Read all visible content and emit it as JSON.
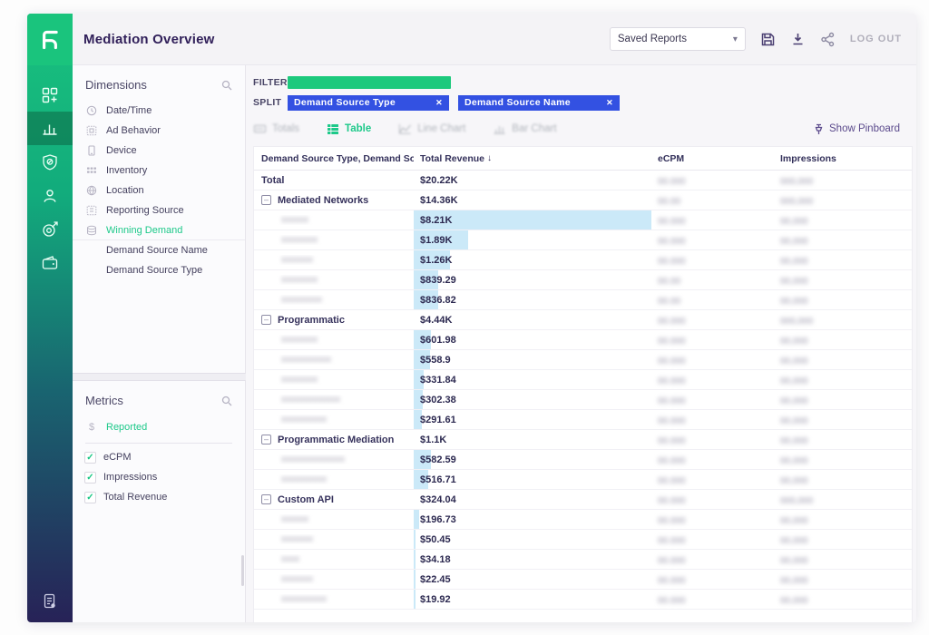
{
  "colors": {
    "accent_green": "#1ec98a",
    "filter_chip_green": "#1dc97d",
    "split_chip_blue": "#3351e2",
    "data_bar_blue": "#cbe9f8",
    "title_purple": "#31205a",
    "sidebar_gradient_top": "#19c27e",
    "sidebar_gradient_bottom": "#272257"
  },
  "topbar": {
    "title": "Mediation Overview",
    "saved_reports_label": "Saved Reports",
    "logout_label": "LOG OUT"
  },
  "sidebar": {
    "items": [
      {
        "icon": "apps-icon",
        "active": false
      },
      {
        "icon": "analytics-bars-icon",
        "active": true
      },
      {
        "icon": "shield-icon",
        "active": false
      },
      {
        "icon": "user-icon",
        "active": false
      },
      {
        "icon": "target-icon",
        "active": false
      },
      {
        "icon": "wallet-icon",
        "active": false
      }
    ],
    "bottom_icon": "report-doc-icon"
  },
  "dimensions": {
    "title": "Dimensions",
    "items": [
      {
        "label": "Date/Time",
        "icon": "clock-icon"
      },
      {
        "label": "Ad Behavior",
        "icon": "ad-behavior-icon"
      },
      {
        "label": "Device",
        "icon": "device-icon"
      },
      {
        "label": "Inventory",
        "icon": "inventory-icon"
      },
      {
        "label": "Location",
        "icon": "globe-icon"
      },
      {
        "label": "Reporting Source",
        "icon": "reporting-source-icon"
      },
      {
        "label": "Winning Demand",
        "icon": "winning-demand-icon",
        "active": true
      },
      {
        "label": "Demand Source Name",
        "sub": true
      },
      {
        "label": "Demand Source Type",
        "sub": true
      }
    ]
  },
  "metrics": {
    "title": "Metrics",
    "reported_label": "Reported",
    "items": [
      {
        "label": "eCPM",
        "checked": true
      },
      {
        "label": "Impressions",
        "checked": true
      },
      {
        "label": "Total Revenue",
        "checked": true
      }
    ]
  },
  "filter_bar": {
    "filter_label": "FILTER",
    "split_label": "SPLIT",
    "filter_value_redacted": true,
    "split_chips": [
      {
        "label": "Demand Source Type",
        "close": "✕"
      },
      {
        "label": "Demand Source Name",
        "close": "✕"
      }
    ]
  },
  "view_tabs": {
    "tabs": [
      {
        "label": "Totals",
        "icon": "totals-icon",
        "state": "disabled"
      },
      {
        "label": "Table",
        "icon": "table-icon",
        "state": "active"
      },
      {
        "label": "Line Chart",
        "icon": "line-chart-icon",
        "state": "disabled"
      },
      {
        "label": "Bar Chart",
        "icon": "bar-chart-icon",
        "state": "disabled"
      }
    ],
    "pinboard_label": "Show Pinboard"
  },
  "table": {
    "columns": [
      {
        "label": "Demand Source Type, Demand Source ..."
      },
      {
        "label": "Total Revenue",
        "sort": "desc"
      },
      {
        "label": "eCPM"
      },
      {
        "label": "Impressions"
      }
    ],
    "max_leaf_revenue": 8210,
    "rows": [
      {
        "type": "total",
        "name": "Total",
        "revenue": "$20.22K",
        "revenue_value": 20220,
        "ecpm_masked": "00.000",
        "impressions_masked": "000,000"
      },
      {
        "type": "group",
        "name": "Mediated Networks",
        "revenue": "$14.36K",
        "revenue_value": 14360,
        "ecpm_masked": "00.00",
        "impressions_masked": "000,000"
      },
      {
        "type": "leaf",
        "name_masked": "xxxxxx",
        "revenue": "$8.21K",
        "revenue_value": 8210,
        "ecpm_masked": "00.000",
        "impressions_masked": "00,000"
      },
      {
        "type": "leaf",
        "name_masked": "xxxxxxxx",
        "revenue": "$1.89K",
        "revenue_value": 1890,
        "ecpm_masked": "00.000",
        "impressions_masked": "00,000"
      },
      {
        "type": "leaf",
        "name_masked": "xxxxxxx",
        "revenue": "$1.26K",
        "revenue_value": 1260,
        "ecpm_masked": "00.000",
        "impressions_masked": "00,000"
      },
      {
        "type": "leaf",
        "name_masked": "xxxxxxxx",
        "revenue": "$839.29",
        "revenue_value": 839,
        "ecpm_masked": "00.00",
        "impressions_masked": "00,000"
      },
      {
        "type": "leaf",
        "name_masked": "xxxxxxxxx",
        "revenue": "$836.82",
        "revenue_value": 837,
        "ecpm_masked": "00.00",
        "impressions_masked": "00,000"
      },
      {
        "type": "group",
        "name": "Programmatic",
        "revenue": "$4.44K",
        "revenue_value": 4440,
        "ecpm_masked": "00.000",
        "impressions_masked": "000,000"
      },
      {
        "type": "leaf",
        "name_masked": "xxxxxxxx",
        "revenue": "$601.98",
        "revenue_value": 602,
        "ecpm_masked": "00.000",
        "impressions_masked": "00,000"
      },
      {
        "type": "leaf",
        "name_masked": "xxxxxxxxxxx",
        "revenue": "$558.9",
        "revenue_value": 559,
        "ecpm_masked": "00.000",
        "impressions_masked": "00,000"
      },
      {
        "type": "leaf",
        "name_masked": "xxxxxxxx",
        "revenue": "$331.84",
        "revenue_value": 332,
        "ecpm_masked": "00.000",
        "impressions_masked": "00,000"
      },
      {
        "type": "leaf",
        "name_masked": "xxxxxxxxxxxxx",
        "revenue": "$302.38",
        "revenue_value": 302,
        "ecpm_masked": "00.000",
        "impressions_masked": "00,000"
      },
      {
        "type": "leaf",
        "name_masked": "xxxxxxxxxx",
        "revenue": "$291.61",
        "revenue_value": 292,
        "ecpm_masked": "00.000",
        "impressions_masked": "00,000"
      },
      {
        "type": "group",
        "name": "Programmatic Mediation",
        "revenue": "$1.1K",
        "revenue_value": 1100,
        "ecpm_masked": "00.000",
        "impressions_masked": "00,000"
      },
      {
        "type": "leaf",
        "name_masked": "xxxxxxxxxxxxxx",
        "revenue": "$582.59",
        "revenue_value": 583,
        "ecpm_masked": "00.000",
        "impressions_masked": "00,000"
      },
      {
        "type": "leaf",
        "name_masked": "xxxxxxxxxx",
        "revenue": "$516.71",
        "revenue_value": 517,
        "ecpm_masked": "00.000",
        "impressions_masked": "00,000"
      },
      {
        "type": "group",
        "name": "Custom API",
        "revenue": "$324.04",
        "revenue_value": 324,
        "ecpm_masked": "00.000",
        "impressions_masked": "000,000"
      },
      {
        "type": "leaf",
        "name_masked": "xxxxxx",
        "revenue": "$196.73",
        "revenue_value": 197,
        "ecpm_masked": "00.000",
        "impressions_masked": "00,000"
      },
      {
        "type": "leaf",
        "name_masked": "xxxxxxx",
        "revenue": "$50.45",
        "revenue_value": 50,
        "ecpm_masked": "00.000",
        "impressions_masked": "00,000"
      },
      {
        "type": "leaf",
        "name_masked": "xxxx",
        "revenue": "$34.18",
        "revenue_value": 34,
        "ecpm_masked": "00.000",
        "impressions_masked": "00,000"
      },
      {
        "type": "leaf",
        "name_masked": "xxxxxxx",
        "revenue": "$22.45",
        "revenue_value": 22,
        "ecpm_masked": "00.000",
        "impressions_masked": "00,000"
      },
      {
        "type": "leaf",
        "name_masked": "xxxxxxxxxx",
        "revenue": "$19.92",
        "revenue_value": 20,
        "ecpm_masked": "00.000",
        "impressions_masked": "00,000"
      }
    ]
  }
}
